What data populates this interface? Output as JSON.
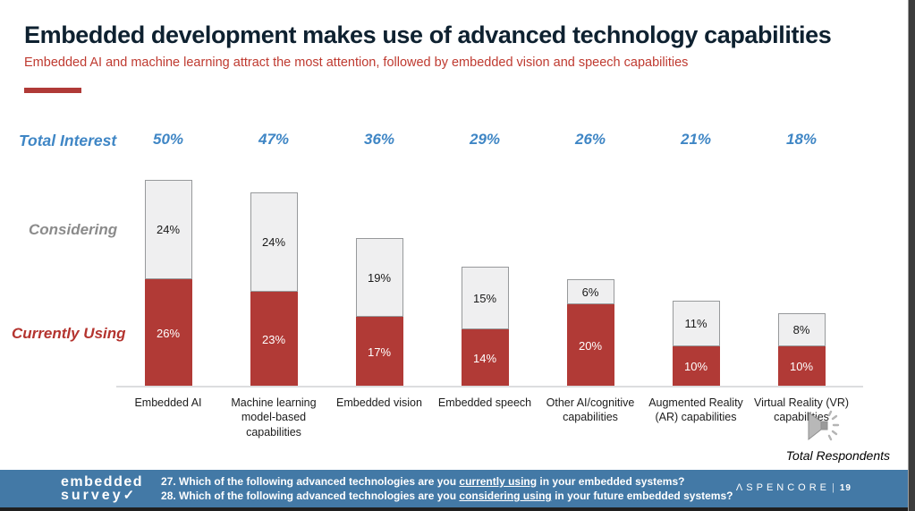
{
  "title": "Embedded development makes use of advanced technology capabilities",
  "subtitle": "Embedded AI and machine learning attract the most attention, followed by embedded vision and speech capabilities",
  "labels": {
    "total_interest": "Total Interest",
    "considering": "Considering",
    "currently_using": "Currently Using",
    "total_respondents": "Total Respondents"
  },
  "chart_data": {
    "type": "bar",
    "stacked": true,
    "title": "Embedded development makes use of advanced technology capabilities",
    "categories": [
      "Embedded AI",
      "Machine learning model-based capabilities",
      "Embedded vision",
      "Embedded speech",
      "Other AI/cognitive capabilities",
      "Augmented Reality (AR) capabilities",
      "Virtual Reality (VR) capabilities"
    ],
    "series": [
      {
        "name": "Currently Using",
        "values": [
          26,
          23,
          17,
          14,
          20,
          10,
          10
        ]
      },
      {
        "name": "Considering",
        "values": [
          24,
          24,
          19,
          15,
          6,
          11,
          8
        ]
      }
    ],
    "totals_row": {
      "label": "Total Interest",
      "values": [
        "50%",
        "47%",
        "36%",
        "29%",
        "26%",
        "21%",
        "18%"
      ]
    },
    "value_suffix": "%",
    "ylim": [
      0,
      50
    ],
    "grid": false,
    "legend_position": "left-row-labels",
    "footnote": "Total Respondents"
  },
  "footer": {
    "logo_line1": "embedded",
    "logo_line2": "survey",
    "logo_check": "✓",
    "questions": [
      {
        "prefix": "27. Which of the following advanced technologies are you ",
        "underline": "currently using",
        "suffix": " in your embedded systems?"
      },
      {
        "prefix": "28. Which of the following advanced technologies are you ",
        "underline": "considering using",
        "suffix": " in your future embedded systems?"
      }
    ],
    "brand": "ΛSPENCORE",
    "brand_separator": "|",
    "page_number": "19"
  },
  "colors": {
    "title_text": "#0e2130",
    "subtitle_text": "#bf3a30",
    "accent_rule": "#b03a37",
    "bar_currently_using": "#b13a36",
    "bar_considering_fill": "#efeff0",
    "bar_considering_border": "#97999b",
    "total_interest_blue": "#3f86c5",
    "footer_blue": "#4379a6",
    "axis_line": "#dcdddf"
  }
}
